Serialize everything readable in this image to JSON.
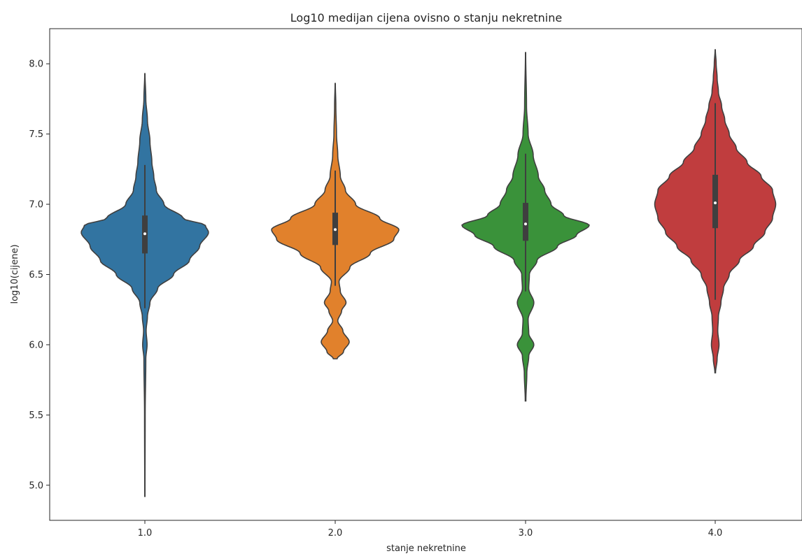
{
  "chart_data": {
    "type": "violin",
    "title": "Log10 medijan cijena ovisno o stanju nekretnine",
    "xlabel": "stanje nekretnine",
    "ylabel": "log10(cijene)",
    "categories": [
      "1.0",
      "2.0",
      "3.0",
      "4.0"
    ],
    "ylim": [
      4.75,
      8.25
    ],
    "yticks": [
      5.0,
      5.5,
      6.0,
      6.5,
      7.0,
      7.5,
      8.0
    ],
    "ytick_labels": [
      "5.0",
      "5.5",
      "6.0",
      "6.5",
      "7.0",
      "7.5",
      "8.0"
    ],
    "grid": false,
    "legend": "none",
    "colors": [
      "#3274a1",
      "#e1812c",
      "#3a923a",
      "#c03d3e"
    ],
    "violins": [
      {
        "category": "1.0",
        "min": 4.92,
        "max": 7.93,
        "q1": 6.65,
        "median": 6.79,
        "q3": 6.92,
        "whisker_low": 6.26,
        "whisker_high": 7.28,
        "profile": [
          [
            4.92,
            0.002
          ],
          [
            5.5,
            0.005
          ],
          [
            5.9,
            0.015
          ],
          [
            6.0,
            0.035
          ],
          [
            6.1,
            0.02
          ],
          [
            6.2,
            0.04
          ],
          [
            6.3,
            0.08
          ],
          [
            6.4,
            0.2
          ],
          [
            6.5,
            0.45
          ],
          [
            6.6,
            0.7
          ],
          [
            6.7,
            0.86
          ],
          [
            6.8,
            1.0
          ],
          [
            6.85,
            0.95
          ],
          [
            6.9,
            0.6
          ],
          [
            7.0,
            0.3
          ],
          [
            7.1,
            0.18
          ],
          [
            7.2,
            0.14
          ],
          [
            7.3,
            0.11
          ],
          [
            7.45,
            0.08
          ],
          [
            7.6,
            0.04
          ],
          [
            7.75,
            0.015
          ],
          [
            7.93,
            0.002
          ]
        ]
      },
      {
        "category": "2.0",
        "min": 5.9,
        "max": 7.86,
        "q1": 6.71,
        "median": 6.82,
        "q3": 6.94,
        "whisker_low": 6.42,
        "whisker_high": 7.24,
        "profile": [
          [
            5.9,
            0.03
          ],
          [
            5.95,
            0.13
          ],
          [
            6.02,
            0.22
          ],
          [
            6.1,
            0.12
          ],
          [
            6.17,
            0.04
          ],
          [
            6.24,
            0.1
          ],
          [
            6.3,
            0.17
          ],
          [
            6.38,
            0.08
          ],
          [
            6.45,
            0.06
          ],
          [
            6.55,
            0.23
          ],
          [
            6.65,
            0.55
          ],
          [
            6.75,
            0.92
          ],
          [
            6.82,
            1.0
          ],
          [
            6.9,
            0.7
          ],
          [
            7.0,
            0.32
          ],
          [
            7.1,
            0.16
          ],
          [
            7.2,
            0.08
          ],
          [
            7.35,
            0.04
          ],
          [
            7.5,
            0.02
          ],
          [
            7.7,
            0.01
          ],
          [
            7.86,
            0.002
          ]
        ]
      },
      {
        "category": "3.0",
        "min": 5.6,
        "max": 8.08,
        "q1": 6.74,
        "median": 6.86,
        "q3": 7.01,
        "whisker_low": 6.38,
        "whisker_high": 7.36,
        "profile": [
          [
            5.6,
            0.005
          ],
          [
            5.8,
            0.02
          ],
          [
            5.92,
            0.05
          ],
          [
            6.0,
            0.13
          ],
          [
            6.08,
            0.05
          ],
          [
            6.18,
            0.04
          ],
          [
            6.3,
            0.13
          ],
          [
            6.4,
            0.05
          ],
          [
            6.5,
            0.06
          ],
          [
            6.6,
            0.18
          ],
          [
            6.7,
            0.5
          ],
          [
            6.78,
            0.8
          ],
          [
            6.85,
            1.0
          ],
          [
            6.92,
            0.6
          ],
          [
            7.0,
            0.4
          ],
          [
            7.1,
            0.3
          ],
          [
            7.2,
            0.2
          ],
          [
            7.35,
            0.12
          ],
          [
            7.5,
            0.04
          ],
          [
            7.7,
            0.015
          ],
          [
            8.08,
            0.002
          ]
        ]
      },
      {
        "category": "4.0",
        "min": 5.8,
        "max": 8.1,
        "q1": 6.83,
        "median": 7.01,
        "q3": 7.21,
        "whisker_low": 6.32,
        "whisker_high": 7.72,
        "profile": [
          [
            5.8,
            0.005
          ],
          [
            5.9,
            0.03
          ],
          [
            6.0,
            0.06
          ],
          [
            6.1,
            0.04
          ],
          [
            6.2,
            0.05
          ],
          [
            6.3,
            0.09
          ],
          [
            6.4,
            0.13
          ],
          [
            6.5,
            0.22
          ],
          [
            6.6,
            0.38
          ],
          [
            6.7,
            0.6
          ],
          [
            6.8,
            0.78
          ],
          [
            6.9,
            0.9
          ],
          [
            7.0,
            0.95
          ],
          [
            7.1,
            0.9
          ],
          [
            7.2,
            0.72
          ],
          [
            7.3,
            0.5
          ],
          [
            7.4,
            0.33
          ],
          [
            7.5,
            0.22
          ],
          [
            7.6,
            0.15
          ],
          [
            7.7,
            0.1
          ],
          [
            7.8,
            0.05
          ],
          [
            7.9,
            0.03
          ],
          [
            8.0,
            0.015
          ],
          [
            8.1,
            0.002
          ]
        ]
      }
    ]
  }
}
